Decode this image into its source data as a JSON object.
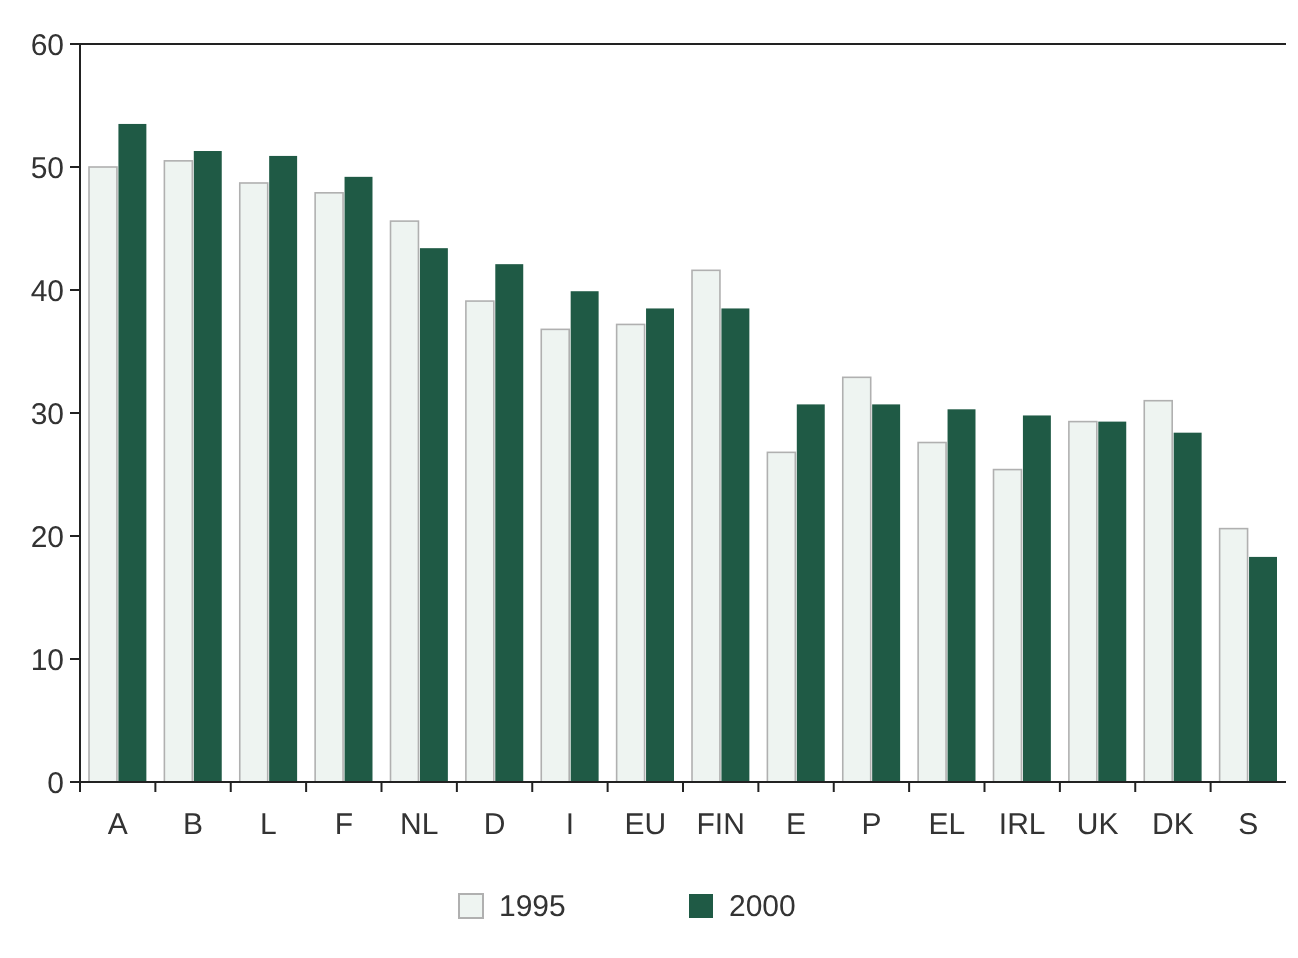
{
  "chart_data": {
    "type": "bar",
    "categories": [
      "A",
      "B",
      "L",
      "F",
      "NL",
      "D",
      "I",
      "EU",
      "FIN",
      "E",
      "P",
      "EL",
      "IRL",
      "UK",
      "DK",
      "S"
    ],
    "series": [
      {
        "name": "1995",
        "color": "#eef4f1",
        "values": [
          50,
          50.5,
          48.7,
          47.9,
          45.6,
          39.1,
          36.8,
          37.2,
          41.6,
          26.8,
          32.9,
          27.6,
          25.4,
          29.3,
          31.0,
          20.6
        ]
      },
      {
        "name": "2000",
        "color": "#1f5a45",
        "values": [
          53.5,
          51.3,
          50.9,
          49.2,
          43.4,
          42.1,
          39.9,
          38.5,
          38.5,
          30.7,
          30.7,
          30.3,
          29.8,
          29.3,
          28.4,
          18.3
        ]
      }
    ],
    "ylim": [
      0,
      60
    ],
    "yticks": [
      0,
      10,
      20,
      30,
      40,
      50,
      60
    ],
    "grid": false,
    "legend": "bottom"
  }
}
